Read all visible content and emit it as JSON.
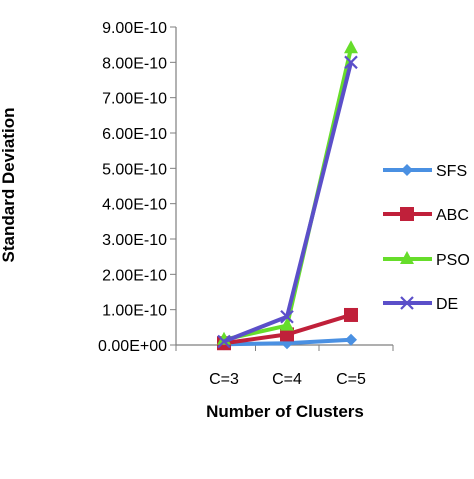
{
  "chart_data": {
    "type": "line",
    "title": "",
    "xlabel": "Number of Clusters",
    "ylabel": "Standard Deviation",
    "categories": [
      "C=3",
      "C=4",
      "C=5"
    ],
    "ylim": [
      0,
      9e-10
    ],
    "yticks": [
      0,
      1e-10,
      2e-10,
      3e-10,
      4e-10,
      5e-10,
      6e-10,
      7e-10,
      8e-10,
      9e-10
    ],
    "ytick_labels": [
      "0.00E+00",
      "1.00E-10",
      "2.00E-10",
      "3.00E-10",
      "4.00E-10",
      "5.00E-10",
      "6.00E-10",
      "7.00E-10",
      "8.00E-10",
      "9.00E-10"
    ],
    "grid": false,
    "legend_position": "right",
    "series": [
      {
        "name": "SFS",
        "values": [
          2e-12,
          5e-12,
          1.5e-11
        ],
        "color": "#4a90e2",
        "marker": "diamond"
      },
      {
        "name": "ABC",
        "values": [
          5e-12,
          3e-11,
          8.5e-11
        ],
        "color": "#c0203a",
        "marker": "square"
      },
      {
        "name": "PSO",
        "values": [
          1.5e-11,
          5.5e-11,
          8.4e-10
        ],
        "color": "#66dd2a",
        "marker": "triangle"
      },
      {
        "name": "DE",
        "values": [
          1e-11,
          8e-11,
          8e-10
        ],
        "color": "#5b4fc9",
        "marker": "x"
      }
    ]
  }
}
